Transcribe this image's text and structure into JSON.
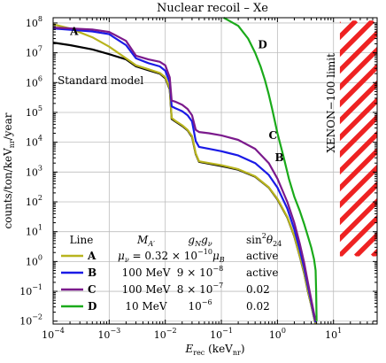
{
  "chart_data": {
    "type": "line",
    "title": "Nuclear recoil – Xe",
    "xlabel": {
      "base": "E",
      "sub": "rec",
      "unit_pre": " (keV",
      "unit_sub": "nr",
      "unit_post": ")"
    },
    "ylabel": {
      "pre": "counts/ton/keV",
      "sub": "nr",
      "post": "/year"
    },
    "x_scale": "log",
    "y_scale": "log",
    "xlim": [
      0.0001,
      60
    ],
    "ylim": [
      0.008,
      150000000
    ],
    "x_ticks": [
      {
        "value": 0.0001,
        "base": "10",
        "exp": "−4"
      },
      {
        "value": 0.001,
        "base": "10",
        "exp": "−3"
      },
      {
        "value": 0.01,
        "base": "10",
        "exp": "−2"
      },
      {
        "value": 0.1,
        "base": "10",
        "exp": "−1"
      },
      {
        "value": 1,
        "base": "10",
        "exp": "0"
      },
      {
        "value": 10,
        "base": "10",
        "exp": "1"
      }
    ],
    "y_ticks": [
      {
        "value": 0.01,
        "base": "10",
        "exp": "−2"
      },
      {
        "value": 0.1,
        "base": "10",
        "exp": "−1"
      },
      {
        "value": 1,
        "base": "10",
        "exp": "0"
      },
      {
        "value": 10,
        "base": "10",
        "exp": "1"
      },
      {
        "value": 100,
        "base": "10",
        "exp": "2"
      },
      {
        "value": 1000,
        "base": "10",
        "exp": "3"
      },
      {
        "value": 10000,
        "base": "10",
        "exp": "4"
      },
      {
        "value": 100000,
        "base": "10",
        "exp": "5"
      },
      {
        "value": 1000000,
        "base": "10",
        "exp": "6"
      },
      {
        "value": 10000000,
        "base": "10",
        "exp": "7"
      },
      {
        "value": 100000000,
        "base": "10",
        "exp": "8"
      }
    ],
    "grid": true,
    "series": [
      {
        "name": "Standard model",
        "color": "#000000",
        "points": [
          [
            0.0001,
            22000000.0
          ],
          [
            0.0002,
            18000000.0
          ],
          [
            0.0005,
            13000000.0
          ],
          [
            0.001,
            9000000.0
          ],
          [
            0.002,
            6000000.0
          ],
          [
            0.003,
            3500000.0
          ],
          [
            0.005,
            2600000.0
          ],
          [
            0.008,
            2000000.0
          ],
          [
            0.01,
            1400000.0
          ],
          [
            0.012,
            600000.0
          ],
          [
            0.013,
            60000.0
          ],
          [
            0.015,
            50000.0
          ],
          [
            0.02,
            35000.0
          ],
          [
            0.025,
            25000.0
          ],
          [
            0.03,
            15000.0
          ],
          [
            0.035,
            4000.0
          ],
          [
            0.04,
            2200.0
          ],
          [
            0.06,
            1900.0
          ],
          [
            0.1,
            1600.0
          ],
          [
            0.2,
            1200.0
          ],
          [
            0.4,
            700
          ],
          [
            0.7,
            300
          ],
          [
            1,
            120
          ],
          [
            1.5,
            30
          ],
          [
            2,
            7
          ],
          [
            2.5,
            1.5
          ],
          [
            3,
            0.4
          ],
          [
            3.5,
            0.1
          ],
          [
            4,
            0.035
          ],
          [
            4.5,
            0.013
          ],
          [
            4.8,
            0.008
          ]
        ]
      },
      {
        "name": "A",
        "color": "#b8b41e",
        "points": [
          [
            0.0001,
            90000000.0
          ],
          [
            0.0002,
            65000000.0
          ],
          [
            0.0005,
            33000000.0
          ],
          [
            0.001,
            16000000.0
          ],
          [
            0.002,
            6500000.0
          ],
          [
            0.003,
            3800000.0
          ],
          [
            0.005,
            2800000.0
          ],
          [
            0.008,
            2100000.0
          ],
          [
            0.01,
            1500000.0
          ],
          [
            0.012,
            650000.0
          ],
          [
            0.013,
            65000.0
          ],
          [
            0.015,
            53000.0
          ],
          [
            0.02,
            37000.0
          ],
          [
            0.025,
            26000.0
          ],
          [
            0.03,
            16000.0
          ],
          [
            0.035,
            4200.0
          ],
          [
            0.04,
            2300.0
          ],
          [
            0.06,
            2000.0
          ],
          [
            0.1,
            1700.0
          ],
          [
            0.2,
            1250.0
          ],
          [
            0.4,
            720
          ],
          [
            0.7,
            310
          ],
          [
            1,
            125
          ],
          [
            1.5,
            31
          ],
          [
            2,
            7.2
          ],
          [
            2.5,
            1.55
          ],
          [
            3,
            0.42
          ],
          [
            3.5,
            0.105
          ],
          [
            4,
            0.036
          ],
          [
            4.5,
            0.013
          ],
          [
            4.8,
            0.008
          ]
        ]
      },
      {
        "name": "B",
        "color": "#1a1ae6",
        "points": [
          [
            0.0001,
            65000000.0
          ],
          [
            0.0005,
            52000000.0
          ],
          [
            0.001,
            42000000.0
          ],
          [
            0.002,
            18000000.0
          ],
          [
            0.003,
            6500000.0
          ],
          [
            0.005,
            4500000.0
          ],
          [
            0.008,
            3500000.0
          ],
          [
            0.01,
            2500000.0
          ],
          [
            0.012,
            1000000.0
          ],
          [
            0.013,
            160000.0
          ],
          [
            0.015,
            140000.0
          ],
          [
            0.02,
            110000.0
          ],
          [
            0.025,
            80000.0
          ],
          [
            0.03,
            50000.0
          ],
          [
            0.035,
            11000.0
          ],
          [
            0.04,
            7000.0
          ],
          [
            0.06,
            6000.0
          ],
          [
            0.1,
            5000.0
          ],
          [
            0.2,
            3600.0
          ],
          [
            0.4,
            2000.0
          ],
          [
            0.7,
            800
          ],
          [
            1,
            300
          ],
          [
            1.5,
            60
          ],
          [
            2,
            12
          ],
          [
            2.5,
            2.5
          ],
          [
            3,
            0.6
          ],
          [
            3.5,
            0.15
          ],
          [
            4,
            0.045
          ],
          [
            4.5,
            0.015
          ],
          [
            4.8,
            0.009
          ]
        ]
      },
      {
        "name": "C",
        "color": "#7b1a8c",
        "points": [
          [
            0.0001,
            70000000.0
          ],
          [
            0.0005,
            60000000.0
          ],
          [
            0.001,
            50000000.0
          ],
          [
            0.002,
            25000000.0
          ],
          [
            0.003,
            8000000.0
          ],
          [
            0.005,
            6000000.0
          ],
          [
            0.008,
            5000000.0
          ],
          [
            0.01,
            3800000.0
          ],
          [
            0.012,
            1500000.0
          ],
          [
            0.013,
            250000.0
          ],
          [
            0.015,
            230000.0
          ],
          [
            0.02,
            180000.0
          ],
          [
            0.025,
            130000.0
          ],
          [
            0.03,
            80000.0
          ],
          [
            0.035,
            26000.0
          ],
          [
            0.04,
            22000.0
          ],
          [
            0.06,
            20000.0
          ],
          [
            0.1,
            17000.0
          ],
          [
            0.2,
            12000.0
          ],
          [
            0.4,
            6000.0
          ],
          [
            0.7,
            2000.0
          ],
          [
            1,
            600
          ],
          [
            1.5,
            100
          ],
          [
            2,
            20
          ],
          [
            2.5,
            4
          ],
          [
            3,
            0.9
          ],
          [
            3.5,
            0.2
          ],
          [
            4,
            0.055
          ],
          [
            4.5,
            0.018
          ],
          [
            4.8,
            0.01
          ]
        ]
      },
      {
        "name": "D",
        "color": "#1aaa1a",
        "points": [
          [
            0.11,
            150000000.0
          ],
          [
            0.2,
            80000000.0
          ],
          [
            0.3,
            30000000.0
          ],
          [
            0.4,
            10000000.0
          ],
          [
            0.5,
            3500000.0
          ],
          [
            0.6,
            1200000.0
          ],
          [
            0.7,
            400000.0
          ],
          [
            0.8,
            140000.0
          ],
          [
            1,
            20000.0
          ],
          [
            1.3,
            3000.0
          ],
          [
            1.6,
            600
          ],
          [
            2,
            150
          ],
          [
            2.5,
            50
          ],
          [
            3,
            18
          ],
          [
            3.5,
            7
          ],
          [
            4,
            3
          ],
          [
            4.5,
            1.2
          ],
          [
            4.8,
            0.5
          ],
          [
            4.9,
            0.1
          ],
          [
            5,
            0.01
          ]
        ]
      }
    ],
    "curve_labels": [
      {
        "text": "A",
        "x": 0.0002,
        "y": 40000000.0
      },
      {
        "text": "Standard model",
        "x": 0.00012,
        "y": 900000.0
      },
      {
        "text": "D",
        "x": 0.45,
        "y": 14000000.0
      },
      {
        "text": "C",
        "x": 0.7,
        "y": 13000.0
      },
      {
        "text": "B",
        "x": 0.9,
        "y": 2300.0
      }
    ],
    "limit_region": {
      "label": "XENON−100 limit",
      "x_range": [
        13,
        60
      ],
      "y_range": [
        1.5,
        120000000.0
      ],
      "color": "#ee2222"
    },
    "legend": {
      "position": "bottom-left",
      "headers": {
        "line": "Line",
        "mass": {
          "base": "M",
          "sub": "A′"
        },
        "coupling": {
          "main": "g",
          "sub1": "N",
          "mid": "g",
          "sub2": "ν"
        },
        "mixing": {
          "main": "sin",
          "sup": "2",
          "mid": "θ",
          "sub": "24"
        }
      },
      "rows": [
        {
          "line": "A",
          "color": "#b8b41e",
          "param": {
            "pre": "μ",
            "pre_sub": "ν",
            "mid": " = 0.32 × 10",
            "sup": "−10",
            "post": "μ",
            "post_sub": "B"
          },
          "mixing": "active"
        },
        {
          "line": "B",
          "color": "#1a1ae6",
          "mass": "100 MeV",
          "coupling": {
            "pre": "9 × 10",
            "sup": "−8"
          },
          "mixing": "active"
        },
        {
          "line": "C",
          "color": "#7b1a8c",
          "mass": "100 MeV",
          "coupling": {
            "pre": "8 × 10",
            "sup": "−7"
          },
          "mixing": "0.02"
        },
        {
          "line": "D",
          "color": "#1aaa1a",
          "mass": "10 MeV",
          "coupling": {
            "pre": "10",
            "sup": "−6"
          },
          "mixing": "0.02"
        }
      ]
    }
  }
}
